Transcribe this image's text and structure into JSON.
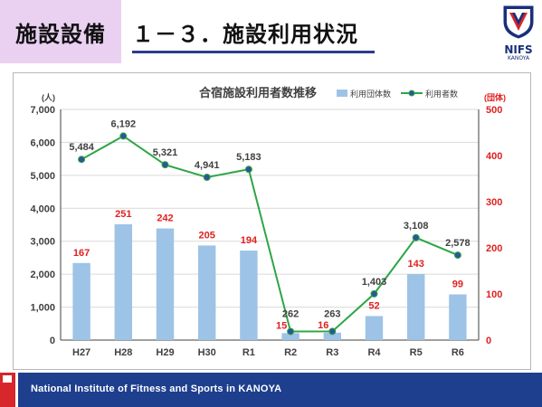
{
  "header": {
    "section_label": "施設設備",
    "title": "１－３．施設利用状況"
  },
  "logo": {
    "name": "NIFS",
    "sub": "KANOYA",
    "emblem_letters": "NIFS",
    "colors": {
      "navy": "#1a2f7a",
      "red": "#d7262c"
    }
  },
  "footer": {
    "text": "National Institute of Fitness and Sports in KANOYA",
    "colors": {
      "bar": "#1e3f8e",
      "accent": "#d7262c"
    }
  },
  "chart_data": {
    "type": "bar+line",
    "title": "合宿施設利用者数推移",
    "categories": [
      "H27",
      "H28",
      "H29",
      "H30",
      "R1",
      "R2",
      "R3",
      "R4",
      "R5",
      "R6"
    ],
    "left_axis": {
      "unit": "(人)",
      "range": [
        0,
        7000
      ],
      "ticks": [
        "0",
        "1,000",
        "2,000",
        "3,000",
        "4,000",
        "5,000",
        "6,000",
        "7,000"
      ]
    },
    "right_axis": {
      "unit": "(団体)",
      "range": [
        0,
        500
      ],
      "ticks": [
        "0",
        "100",
        "200",
        "300",
        "400",
        "500"
      ]
    },
    "legend_position": "top-right",
    "grid": true,
    "series": [
      {
        "name": "利用団体数",
        "kind": "bar",
        "axis": "right",
        "color": "#9dc3e6",
        "label_color": "#e02020",
        "values": [
          167,
          251,
          242,
          205,
          194,
          15,
          16,
          52,
          143,
          99
        ],
        "labels": [
          "167",
          "251",
          "242",
          "205",
          "194",
          "15",
          "16",
          "52",
          "143",
          "99"
        ]
      },
      {
        "name": "利用者数",
        "kind": "line",
        "axis": "left",
        "color": "#2ea646",
        "marker_color": "#2e5597",
        "label_color": "#404040",
        "values": [
          5484,
          6192,
          5321,
          4941,
          5183,
          262,
          263,
          1403,
          3108,
          2578
        ],
        "labels": [
          "5,484",
          "6,192",
          "5,321",
          "4,941",
          "5,183",
          "262",
          "263",
          "1,403",
          "3,108",
          "2,578"
        ]
      }
    ]
  }
}
